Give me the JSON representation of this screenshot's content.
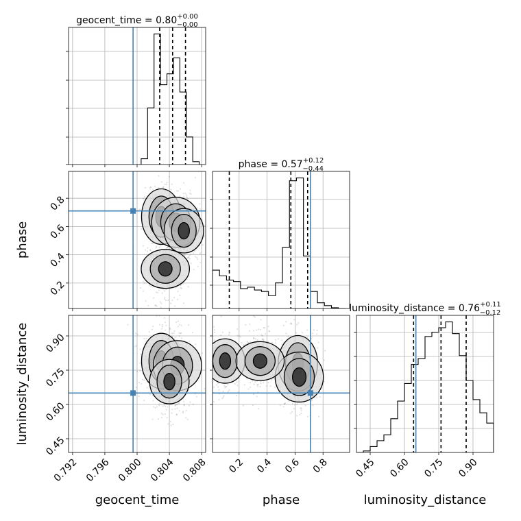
{
  "chart_data": [
    {
      "type": "histogram",
      "panel": "geocent_time-1d",
      "parameter": "geocent_time",
      "title": {
        "prefix": "geocent_time = 0.80",
        "sup": "+0.00",
        "sub": "−0.00"
      },
      "xlim": [
        0.7915,
        0.8085
      ],
      "bin_edges": [
        0.8005,
        0.8013,
        0.8021,
        0.8029,
        0.8037,
        0.8045,
        0.8053,
        0.8061,
        0.8069,
        0.8077
      ],
      "values": [
        0.08,
        0.78,
        1.8,
        1.1,
        1.25,
        1.47,
        1.0,
        0.38,
        0.04
      ],
      "quantiles": [
        0.8028,
        0.8044,
        0.806
      ],
      "truth": 0.7995
    },
    {
      "type": "scatter",
      "panel": "phase-vs-geocent_time",
      "x_param": "geocent_time",
      "y_param": "phase",
      "xlim": [
        0.7915,
        0.8085
      ],
      "ylim": [
        0.02,
        0.99
      ],
      "ylabel": "phase",
      "yticks": [
        "0.2",
        "0.4",
        "0.6",
        "0.8"
      ],
      "truth": {
        "x": 0.7995,
        "y": 0.71
      },
      "density_peaks": [
        [
          0.803,
          0.67
        ],
        [
          0.8048,
          0.63
        ],
        [
          0.8058,
          0.57
        ],
        [
          0.8035,
          0.3
        ]
      ]
    },
    {
      "type": "histogram",
      "panel": "phase-1d",
      "parameter": "phase",
      "title": {
        "prefix": "phase = 0.57",
        "sup": "+0.12",
        "sub": "−0.44"
      },
      "xlim": [
        0.01,
        0.99
      ],
      "bin_edges": [
        0.01,
        0.06,
        0.11,
        0.16,
        0.21,
        0.26,
        0.31,
        0.36,
        0.41,
        0.46,
        0.51,
        0.56,
        0.61,
        0.66,
        0.71,
        0.76,
        0.81,
        0.86,
        0.91,
        0.96
      ],
      "values": [
        0.27,
        0.23,
        0.2,
        0.19,
        0.14,
        0.15,
        0.13,
        0.12,
        0.09,
        0.18,
        0.43,
        0.9,
        0.92,
        0.37,
        0.12,
        0.04,
        0.02,
        0.005,
        0.0
      ],
      "quantiles": [
        0.13,
        0.57,
        0.69
      ],
      "truth": 0.71
    },
    {
      "type": "scatter",
      "panel": "luminosity_distance-vs-geocent_time",
      "x_param": "geocent_time",
      "y_param": "luminosity_distance",
      "xlim": [
        0.7915,
        0.8085
      ],
      "ylim": [
        0.39,
        0.99
      ],
      "xlabel": "geocent_time",
      "ylabel": "luminosity_distance",
      "xticks": [
        "0.792",
        "0.796",
        "0.800",
        "0.804",
        "0.808"
      ],
      "yticks": [
        "0.45",
        "0.60",
        "0.75",
        "0.90"
      ],
      "truth": {
        "x": 0.7995,
        "y": 0.65
      },
      "density_peaks": [
        [
          0.803,
          0.79
        ],
        [
          0.805,
          0.77
        ],
        [
          0.804,
          0.7
        ]
      ]
    },
    {
      "type": "scatter",
      "panel": "luminosity_distance-vs-phase",
      "x_param": "phase",
      "y_param": "luminosity_distance",
      "xlim": [
        0.01,
        0.99
      ],
      "ylim": [
        0.39,
        0.99
      ],
      "xlabel": "phase",
      "xticks": [
        "0.2",
        "0.4",
        "0.6",
        "0.8"
      ],
      "truth": {
        "x": 0.71,
        "y": 0.65
      },
      "density_peaks": [
        [
          0.62,
          0.78
        ],
        [
          0.63,
          0.72
        ],
        [
          0.1,
          0.79
        ],
        [
          0.35,
          0.79
        ]
      ]
    },
    {
      "type": "histogram",
      "panel": "luminosity_distance-1d",
      "parameter": "luminosity_distance",
      "title": {
        "prefix": "luminosity_distance = 0.76",
        "sup": "+0.11",
        "sub": "−0.12"
      },
      "xlim": [
        0.39,
        0.99
      ],
      "xlabel": "luminosity_distance",
      "xticks": [
        "0.45",
        "0.60",
        "0.75",
        "0.90"
      ],
      "bin_edges": [
        0.39,
        0.42,
        0.45,
        0.48,
        0.51,
        0.54,
        0.57,
        0.6,
        0.63,
        0.66,
        0.69,
        0.72,
        0.75,
        0.78,
        0.81,
        0.84,
        0.87,
        0.9,
        0.93,
        0.96,
        0.99
      ],
      "values": [
        0.0,
        0.01,
        0.04,
        0.08,
        0.12,
        0.23,
        0.35,
        0.47,
        0.6,
        0.64,
        0.79,
        0.82,
        0.85,
        0.89,
        0.81,
        0.66,
        0.49,
        0.36,
        0.27,
        0.2
      ],
      "quantiles": [
        0.64,
        0.76,
        0.87
      ],
      "truth": 0.65
    }
  ]
}
